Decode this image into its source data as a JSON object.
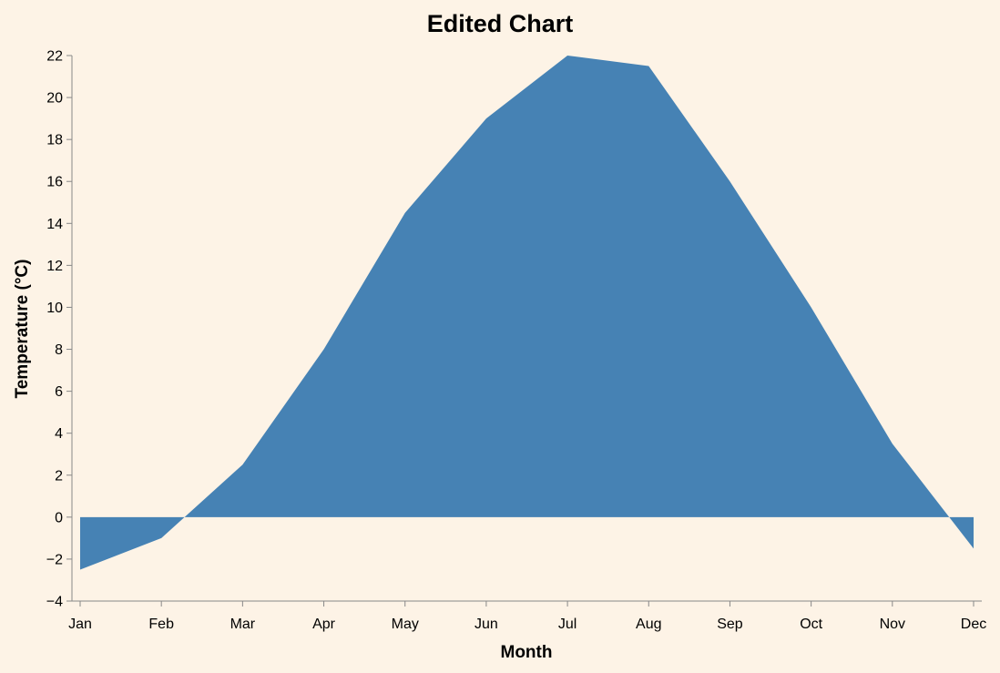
{
  "chart_data": {
    "type": "area",
    "title": "Edited Chart",
    "xlabel": "Month",
    "ylabel": "Temperature (°C)",
    "categories": [
      "Jan",
      "Feb",
      "Mar",
      "Apr",
      "May",
      "Jun",
      "Jul",
      "Aug",
      "Sep",
      "Oct",
      "Nov",
      "Dec"
    ],
    "values": [
      -2.5,
      -1.0,
      2.5,
      8.0,
      14.5,
      19.0,
      22.0,
      21.5,
      16.0,
      10.0,
      3.5,
      -1.5
    ],
    "ylim": [
      -4,
      22
    ],
    "yticks": [
      -4,
      -2,
      0,
      2,
      4,
      6,
      8,
      10,
      12,
      14,
      16,
      18,
      20,
      22
    ],
    "grid": false,
    "colors": {
      "area": "#4682b4",
      "background": "#fdf3e6",
      "axis": "#888888"
    }
  }
}
